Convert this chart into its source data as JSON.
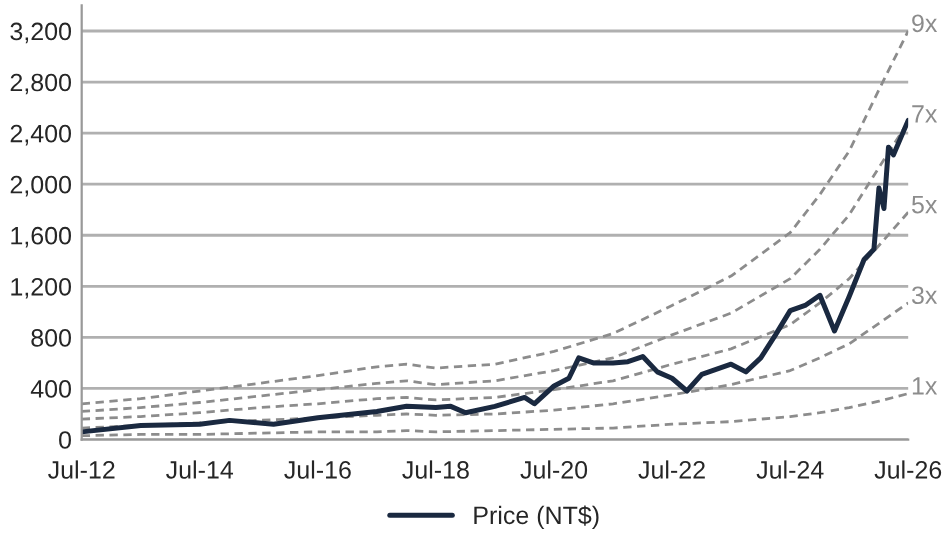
{
  "chart_data": {
    "type": "line",
    "ylim": [
      0,
      3400
    ],
    "yticks": [
      0,
      {
        "value": 400,
        "label": "400"
      },
      {
        "value": 800,
        "label": "800"
      },
      {
        "value": 1200,
        "label": "1,200"
      },
      {
        "value": 1600,
        "label": "1,600"
      },
      {
        "value": 2000,
        "label": "2,000"
      },
      {
        "value": 2400,
        "label": "2,400"
      },
      {
        "value": 2800,
        "label": "2,800"
      },
      {
        "value": 3200,
        "label": "3,200"
      }
    ],
    "xlim": [
      "2012-07",
      "2026-07"
    ],
    "xticks": [
      {
        "value": "2012-07",
        "label": "Jul-12"
      },
      {
        "value": "2014-07",
        "label": "Jul-14"
      },
      {
        "value": "2016-07",
        "label": "Jul-16"
      },
      {
        "value": "2018-07",
        "label": "Jul-18"
      },
      {
        "value": "2020-07",
        "label": "Jul-20"
      },
      {
        "value": "2022-07",
        "label": "Jul-22"
      },
      {
        "value": "2024-07",
        "label": "Jul-24"
      },
      {
        "value": "2026-07",
        "label": "Jul-26"
      }
    ],
    "grid": "y",
    "legend": "bottom",
    "x": [
      "2012-07",
      "2013-07",
      "2014-07",
      "2015-07",
      "2016-07",
      "2017-07",
      "2018-01",
      "2018-07",
      "2019-07",
      "2020-07",
      "2021-07",
      "2022-07",
      "2023-07",
      "2024-07",
      "2025-01",
      "2025-07",
      "2026-01",
      "2026-07"
    ],
    "series": [
      {
        "name": "9x",
        "color": "#8c8c8c",
        "line_style": "dashed",
        "values": [
          280,
          320,
          380,
          440,
          500,
          570,
          590,
          560,
          590,
          690,
          830,
          1050,
          1280,
          1620,
          1920,
          2260,
          2740,
          3200
        ]
      },
      {
        "name": "7x",
        "color": "#8c8c8c",
        "line_style": "dashed",
        "values": [
          220,
          250,
          290,
          340,
          390,
          440,
          460,
          430,
          460,
          540,
          640,
          820,
          990,
          1260,
          1490,
          1760,
          2130,
          2490
        ]
      },
      {
        "name": "5x",
        "color": "#8c8c8c",
        "line_style": "dashed",
        "values": [
          160,
          180,
          210,
          250,
          280,
          320,
          330,
          310,
          330,
          390,
          460,
          590,
          710,
          900,
          1070,
          1260,
          1520,
          1780
        ]
      },
      {
        "name": "3x",
        "color": "#8c8c8c",
        "line_style": "dashed",
        "values": [
          90,
          110,
          130,
          150,
          170,
          190,
          200,
          190,
          200,
          230,
          280,
          350,
          430,
          540,
          640,
          750,
          910,
          1070
        ]
      },
      {
        "name": "1x",
        "color": "#8c8c8c",
        "line_style": "dashed",
        "values": [
          30,
          40,
          40,
          50,
          60,
          60,
          70,
          60,
          70,
          80,
          90,
          120,
          140,
          180,
          210,
          250,
          300,
          360
        ]
      },
      {
        "name": "Price (NT$)",
        "color": "#1a2940",
        "line_style": "solid",
        "x": [
          "2012-07",
          "2013-07",
          "2014-07",
          "2015-01",
          "2015-10",
          "2016-07",
          "2017-07",
          "2018-01",
          "2018-07",
          "2018-10",
          "2019-01",
          "2019-07",
          "2020-01",
          "2020-03",
          "2020-07",
          "2020-10",
          "2020-12",
          "2021-03",
          "2021-07",
          "2021-10",
          "2022-01",
          "2022-04",
          "2022-07",
          "2022-10",
          "2023-01",
          "2023-07",
          "2023-10",
          "2024-01",
          "2024-04",
          "2024-07",
          "2024-10",
          "2025-01",
          "2025-04",
          "2025-07",
          "2025-10",
          "2025-12",
          "2026-01",
          "2026-02",
          "2026-03",
          "2026-04",
          "2026-07"
        ],
        "values": [
          60,
          110,
          120,
          150,
          120,
          170,
          220,
          260,
          250,
          260,
          210,
          260,
          330,
          280,
          420,
          480,
          640,
          600,
          600,
          610,
          650,
          530,
          480,
          380,
          510,
          590,
          530,
          640,
          820,
          1010,
          1050,
          1130,
          850,
          1120,
          1410,
          1490,
          1970,
          1810,
          2290,
          2230,
          2500
        ]
      }
    ]
  }
}
